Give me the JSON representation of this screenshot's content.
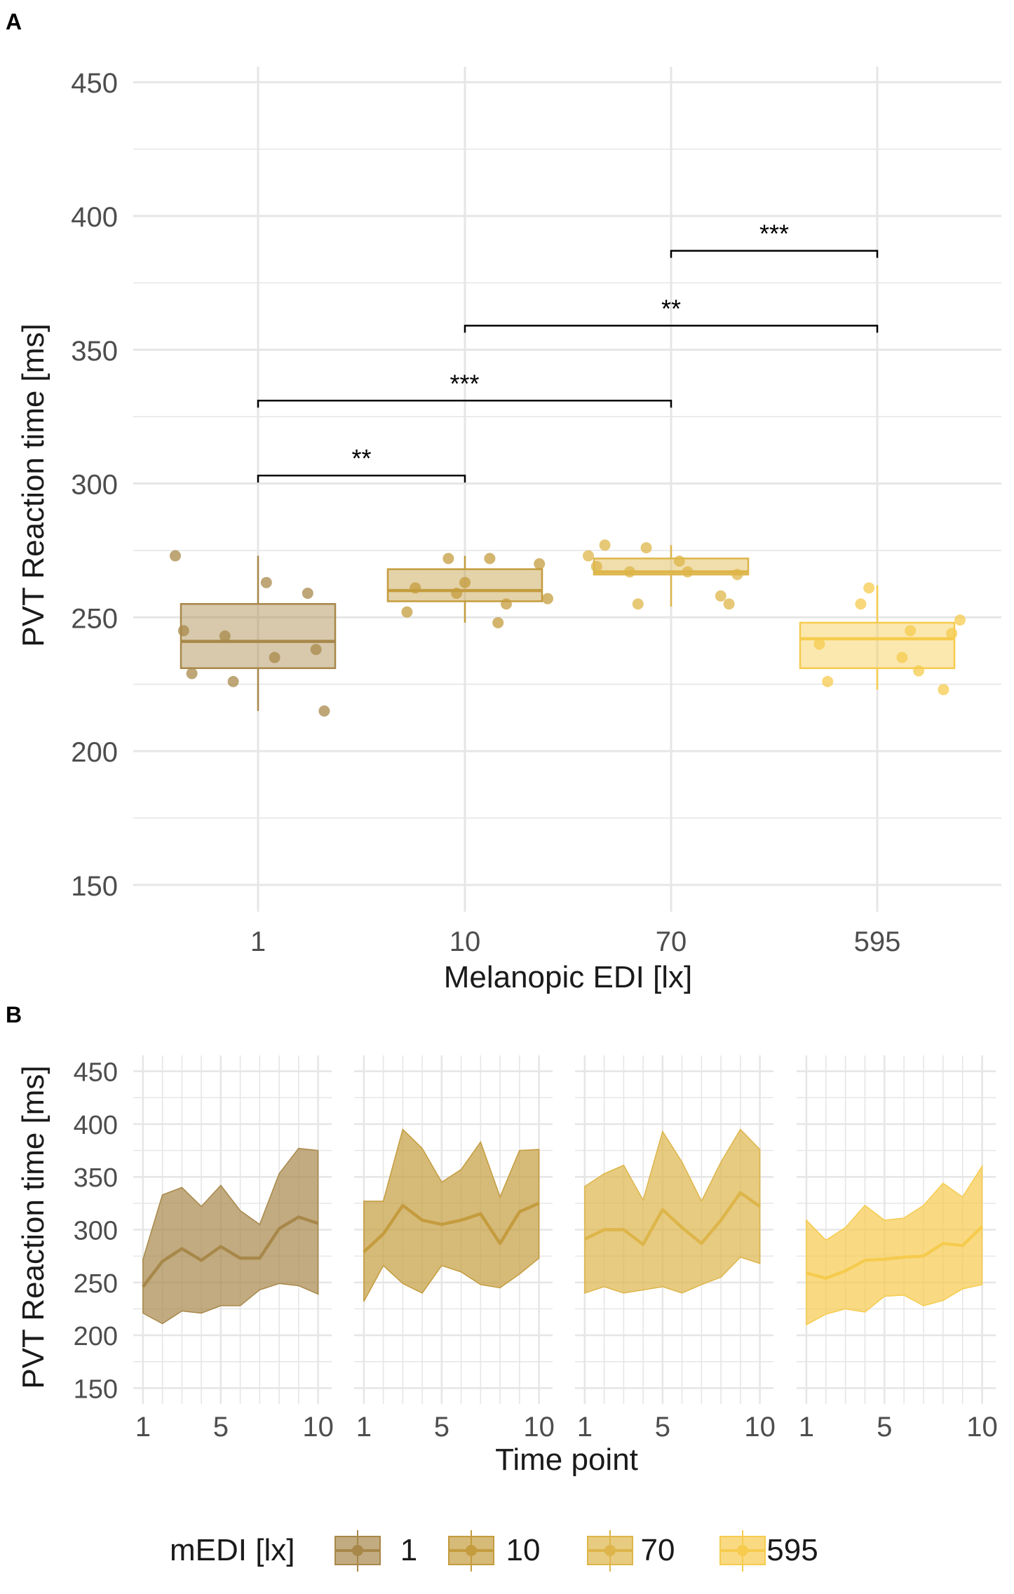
{
  "colors": {
    "1": "#A8884A",
    "10": "#C49C3E",
    "70": "#DDB54A",
    "595": "#F6CB4E",
    "grid": "#E6E6E6",
    "text": "#4D4D4D",
    "axis_title": "#1A1A1A",
    "bracket": "#000000"
  },
  "chart_data": [
    {
      "panel_label": "A",
      "type": "box",
      "xlabel": "Melanopic EDI [lx]",
      "ylabel": "PVT Reaction time [ms]",
      "ylim": [
        140,
        465
      ],
      "yticks": [
        150,
        200,
        250,
        300,
        350,
        400,
        450
      ],
      "categories": [
        "1",
        "10",
        "70",
        "595"
      ],
      "grid": true,
      "boxes": [
        {
          "category": "1",
          "whisker_low": 215,
          "q1": 231,
          "median": 241,
          "q3": 255,
          "whisker_high": 273
        },
        {
          "category": "10",
          "whisker_low": 248,
          "q1": 256,
          "median": 260,
          "q3": 268,
          "whisker_high": 273
        },
        {
          "category": "70",
          "whisker_low": 254,
          "q1": 266,
          "median": 267,
          "q3": 272,
          "whisker_high": 277
        },
        {
          "category": "595",
          "whisker_low": 223,
          "q1": 231,
          "median": 242,
          "q3": 248,
          "whisker_high": 262
        }
      ],
      "points": [
        {
          "category": "1",
          "values": [
            273,
            259,
            263,
            243,
            245,
            238,
            235,
            226,
            229,
            215
          ]
        },
        {
          "category": "10",
          "values": [
            272,
            272,
            252,
            270,
            248,
            259,
            261,
            257,
            255,
            263
          ]
        },
        {
          "category": "70",
          "values": [
            267,
            273,
            258,
            271,
            255,
            269,
            255,
            267,
            276,
            277,
            266
          ]
        },
        {
          "category": "595",
          "values": [
            223,
            235,
            255,
            240,
            244,
            245,
            261,
            226,
            249,
            230
          ]
        }
      ],
      "comparisons": [
        {
          "from": "1",
          "to": "10",
          "y": 303,
          "label": "**"
        },
        {
          "from": "1",
          "to": "70",
          "y": 331,
          "label": "***"
        },
        {
          "from": "10",
          "to": "595",
          "y": 359,
          "label": "**"
        },
        {
          "from": "70",
          "to": "595",
          "y": 387,
          "label": "***"
        }
      ]
    },
    {
      "panel_label": "B",
      "type": "area",
      "xlabel": "Time point",
      "ylabel": "PVT Reaction time [ms]",
      "ylim": [
        135,
        465
      ],
      "yticks": [
        150,
        200,
        250,
        300,
        350,
        400,
        450
      ],
      "xlim": [
        0.5,
        10.7
      ],
      "xticks": [
        1,
        5,
        10
      ],
      "x": [
        1,
        2,
        3,
        4,
        5,
        6,
        7,
        8,
        9,
        10
      ],
      "grid": true,
      "series": [
        {
          "group": "1",
          "mean": [
            246,
            270,
            282,
            271,
            284,
            273,
            273,
            301,
            312,
            306
          ],
          "lower": [
            221,
            211,
            223,
            221,
            228,
            228,
            243,
            249,
            247,
            239
          ],
          "upper": [
            272,
            333,
            340,
            322,
            342,
            318,
            305,
            353,
            377,
            375
          ]
        },
        {
          "group": "10",
          "mean": [
            279,
            296,
            323,
            309,
            305,
            309,
            315,
            287,
            317,
            325
          ],
          "lower": [
            232,
            266,
            249,
            240,
            266,
            260,
            248,
            245,
            258,
            273
          ],
          "upper": [
            327,
            327,
            395,
            377,
            345,
            357,
            383,
            331,
            375,
            376
          ]
        },
        {
          "group": "70",
          "mean": [
            291,
            300,
            300,
            286,
            319,
            302,
            287,
            309,
            335,
            322
          ],
          "lower": [
            240,
            246,
            240,
            243,
            246,
            240,
            248,
            255,
            274,
            268
          ],
          "upper": [
            341,
            353,
            361,
            328,
            393,
            364,
            327,
            364,
            395,
            376
          ]
        },
        {
          "group": "595",
          "mean": [
            259,
            254,
            261,
            271,
            272,
            274,
            275,
            287,
            285,
            303
          ],
          "lower": [
            210,
            220,
            225,
            222,
            237,
            238,
            228,
            233,
            244,
            248
          ],
          "upper": [
            309,
            290,
            302,
            323,
            309,
            311,
            323,
            344,
            331,
            360
          ]
        }
      ]
    }
  ],
  "legend": {
    "title": "mEDI [lx]",
    "entries": [
      "1",
      "10",
      "70",
      "595"
    ]
  }
}
